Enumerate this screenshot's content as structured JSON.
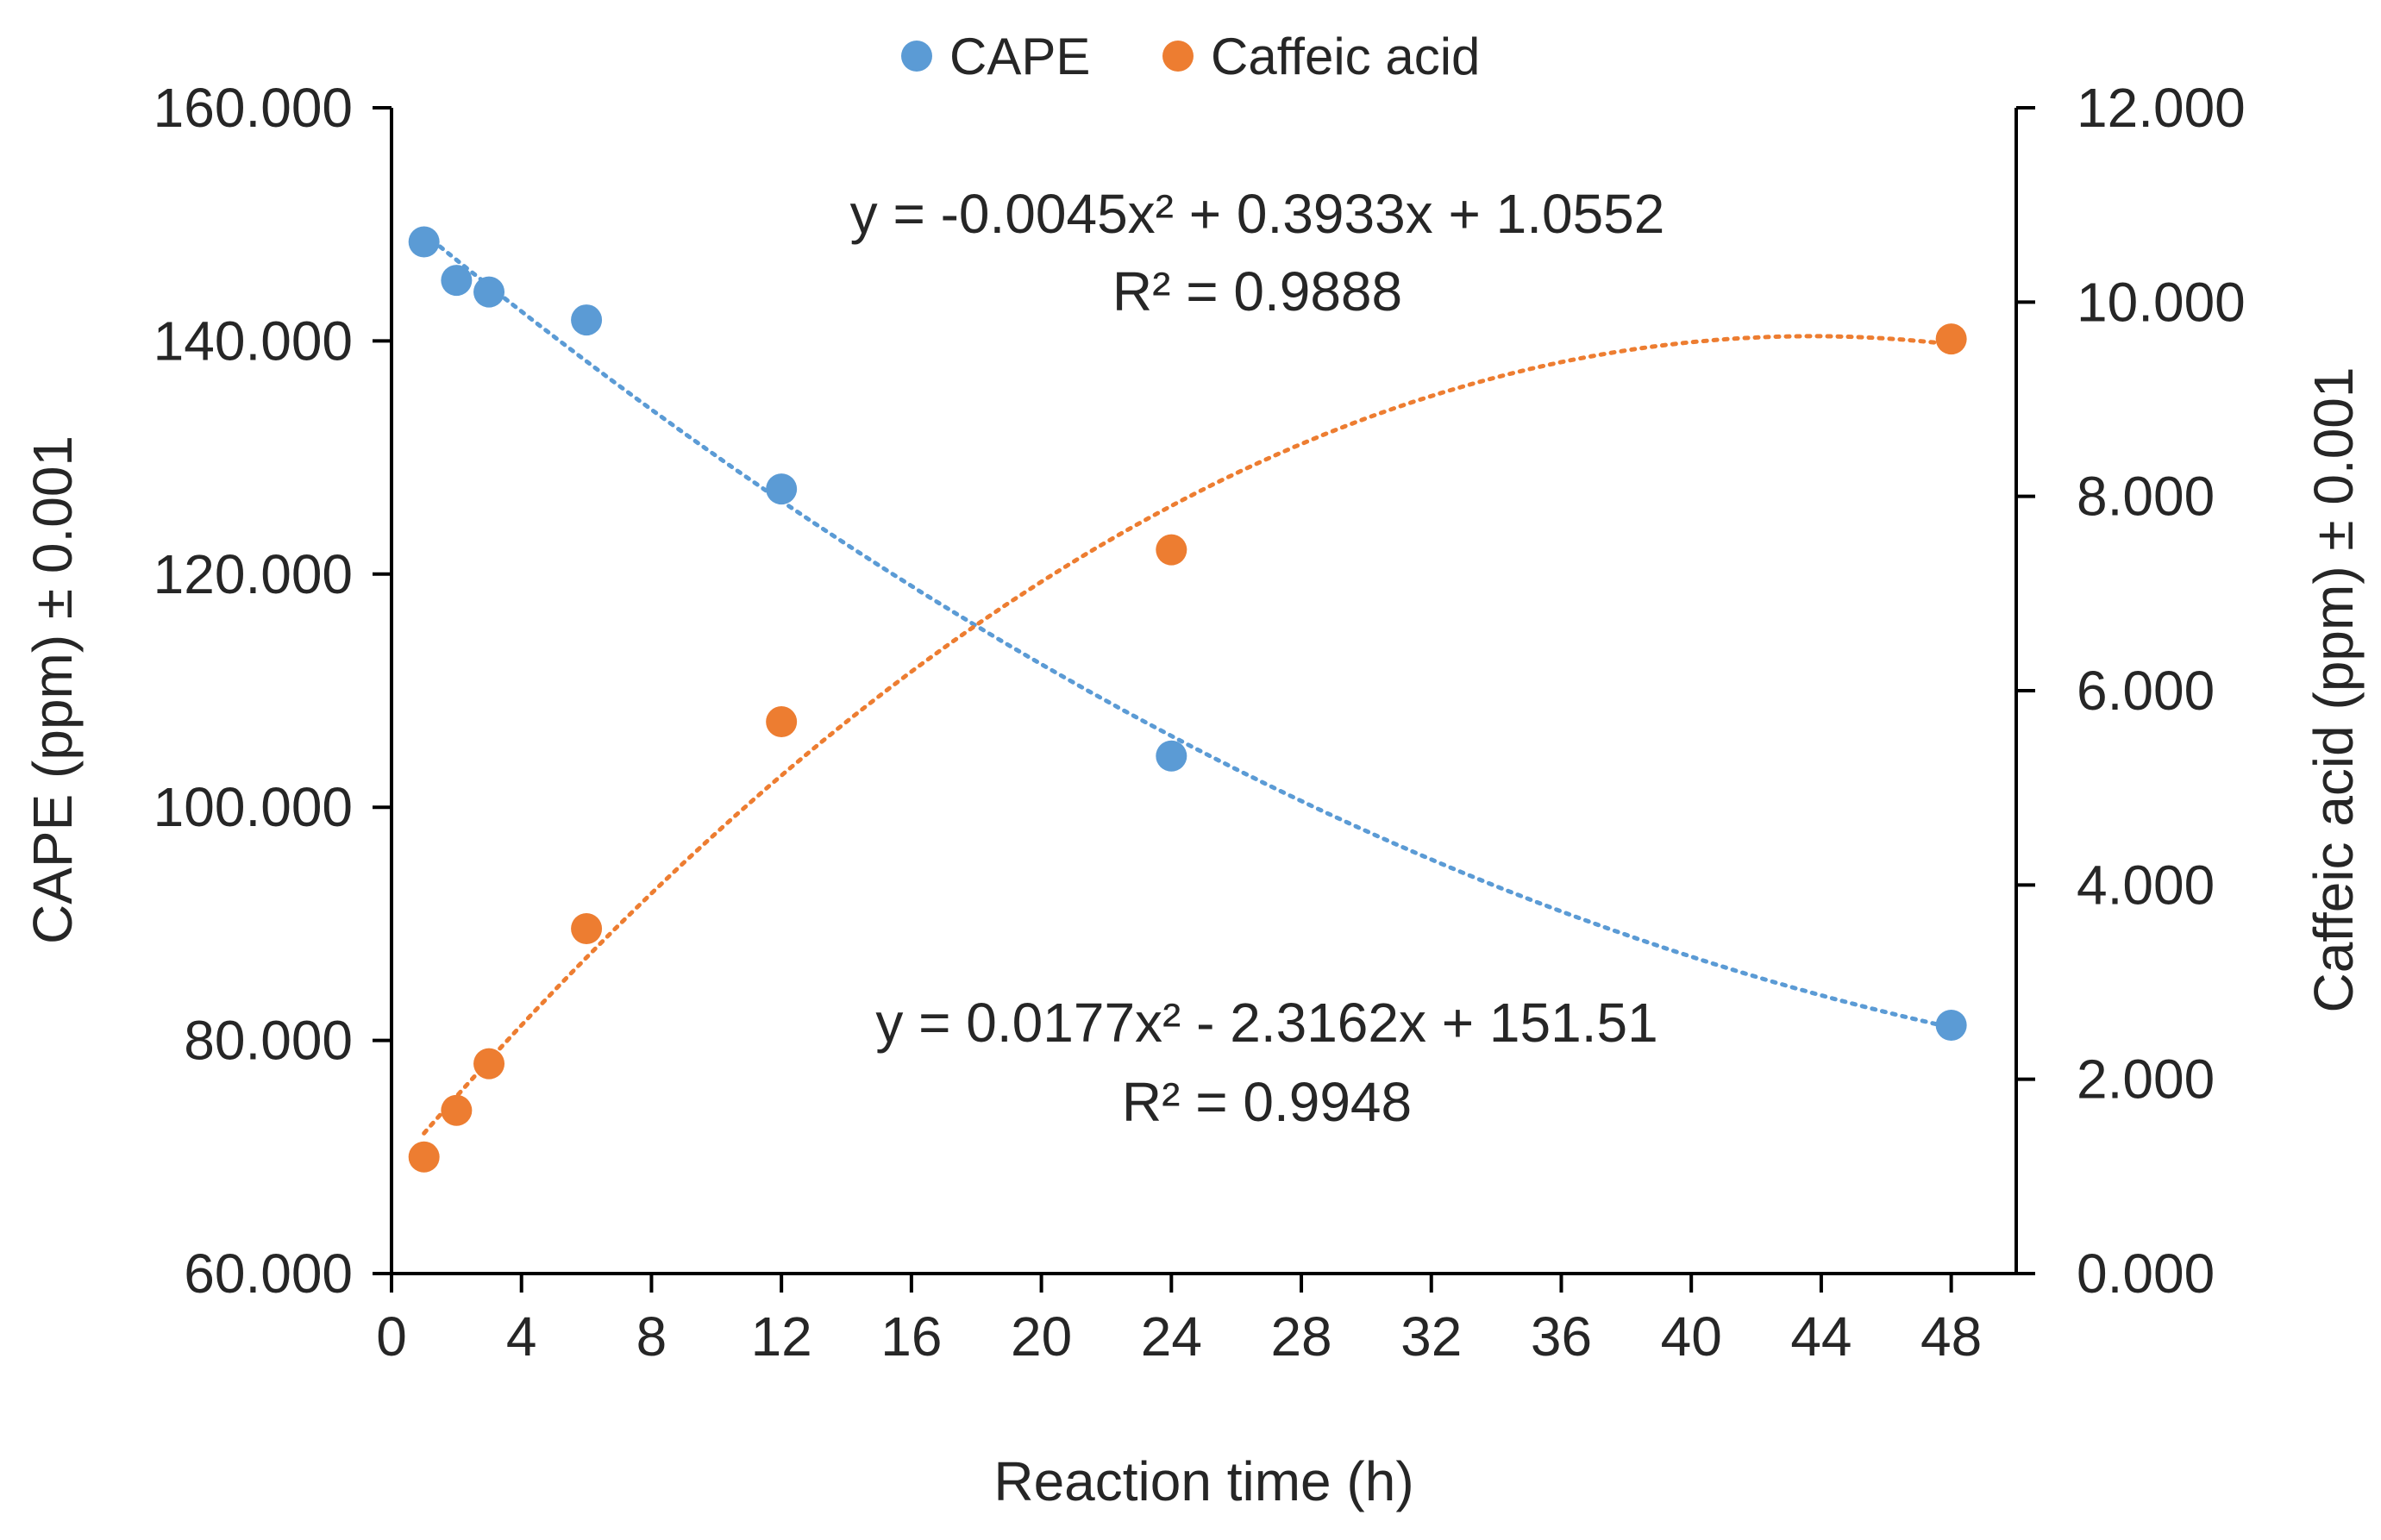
{
  "chart_data": {
    "type": "scatter",
    "title": "",
    "xlabel": "Reaction time (h)",
    "ylabel": "CAPE (ppm) ± 0.001",
    "y2label": "Caffeic acid (ppm) ± 0.001",
    "xlim": [
      0,
      50
    ],
    "ylim": [
      60,
      160
    ],
    "y2lim": [
      0,
      12
    ],
    "x_ticks": [
      0,
      4,
      8,
      12,
      16,
      20,
      24,
      28,
      32,
      36,
      40,
      44,
      48
    ],
    "y_ticks": [
      "60.000",
      "80.000",
      "100.000",
      "120.000",
      "140.000",
      "160.000"
    ],
    "y2_ticks": [
      "0.000",
      "2.000",
      "4.000",
      "6.000",
      "8.000",
      "10.000",
      "12.000"
    ],
    "legend_position": "top-center",
    "grid": false,
    "series": [
      {
        "name": "CAPE",
        "axis": "left",
        "color": "#5B9BD5",
        "x": [
          1,
          2,
          3,
          6,
          12,
          24,
          48
        ],
        "y": [
          148.5,
          145.2,
          144.2,
          141.8,
          127.3,
          104.4,
          81.3
        ],
        "trendline": {
          "type": "poly2",
          "coefficients": [
            0.0177,
            -2.3162,
            151.51
          ],
          "x_range": [
            1,
            48
          ]
        }
      },
      {
        "name": "Caffeic acid",
        "axis": "right",
        "color": "#ED7D31",
        "x": [
          1,
          2,
          3,
          6,
          12,
          24,
          48
        ],
        "y": [
          1.2,
          1.68,
          2.16,
          3.55,
          5.68,
          7.45,
          9.62
        ],
        "trendline": {
          "type": "poly2",
          "coefficients": [
            -0.0045,
            0.3933,
            1.0552
          ],
          "x_range": [
            1,
            48
          ]
        }
      }
    ],
    "annotations": [
      {
        "id": "caffeic-eq",
        "text": "y = -0.0045x² + 0.3933x + 1.0552",
        "r2": "R² = 0.9888"
      },
      {
        "id": "cape-eq",
        "text": "y = 0.0177x² - 2.3162x + 151.51",
        "r2": "R² = 0.9948"
      }
    ]
  }
}
